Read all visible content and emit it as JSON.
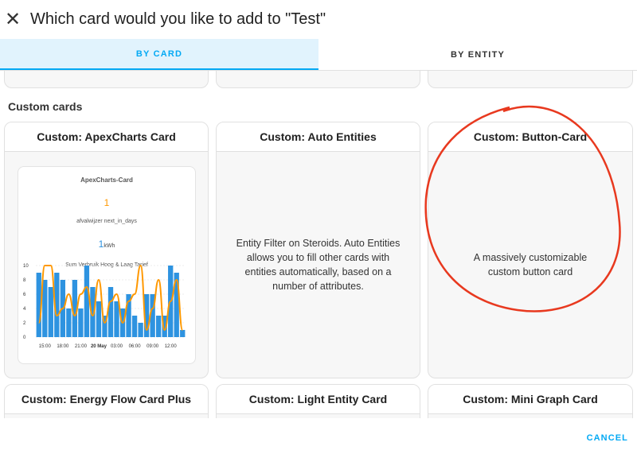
{
  "dialog": {
    "title": "Which card would you like to add to \"Test\"",
    "close_icon": "close-icon"
  },
  "tabs": [
    {
      "label": "BY CARD",
      "active": true
    },
    {
      "label": "BY ENTITY",
      "active": false
    }
  ],
  "section_title": "Custom cards",
  "cards": [
    {
      "title": "Custom: ApexCharts Card"
    },
    {
      "title": "Custom: Auto Entities",
      "description": "Entity Filter on Steroids. Auto Entities allows you to fill other cards with entities automatically, based on a number of attributes."
    },
    {
      "title": "Custom: Button-Card",
      "description": "A massively customizable custom button card"
    },
    {
      "title": "Custom: Energy Flow Card Plus"
    },
    {
      "title": "Custom: Light Entity Card"
    },
    {
      "title": "Custom: Mini Graph Card"
    }
  ],
  "apex_preview": {
    "card_title": "ApexCharts-Card",
    "value1": "1",
    "label1": "afvalwijzer next_in_days",
    "value2": "1",
    "unit2": "kWh",
    "label2": "Sum Verbruik Hoog & Laag Tarief"
  },
  "chart_data": {
    "type": "bar",
    "yticks": [
      "0",
      "2",
      "4",
      "6",
      "8",
      "10"
    ],
    "ylim": [
      0,
      10
    ],
    "xticks": [
      "15:00",
      "18:00",
      "21:00",
      "20 May",
      "03:00",
      "06:00",
      "09:00",
      "12:00"
    ],
    "series": [
      {
        "type": "bar",
        "color": "#2e93e0",
        "values": [
          9,
          8,
          7,
          9,
          8,
          4,
          8,
          4,
          10,
          7,
          5,
          3,
          7,
          5,
          4,
          6,
          3,
          2,
          6,
          6,
          3,
          3,
          10,
          9,
          1
        ]
      },
      {
        "type": "line",
        "color": "#ff9800",
        "values": [
          2,
          10,
          10,
          3,
          4,
          6,
          3,
          6,
          7,
          3,
          8,
          2,
          5,
          6,
          2,
          5,
          6,
          10,
          1,
          4,
          8,
          1,
          5,
          8,
          1
        ]
      }
    ]
  },
  "annotation_color": "#e8391f",
  "footer": {
    "cancel_label": "CANCEL"
  }
}
